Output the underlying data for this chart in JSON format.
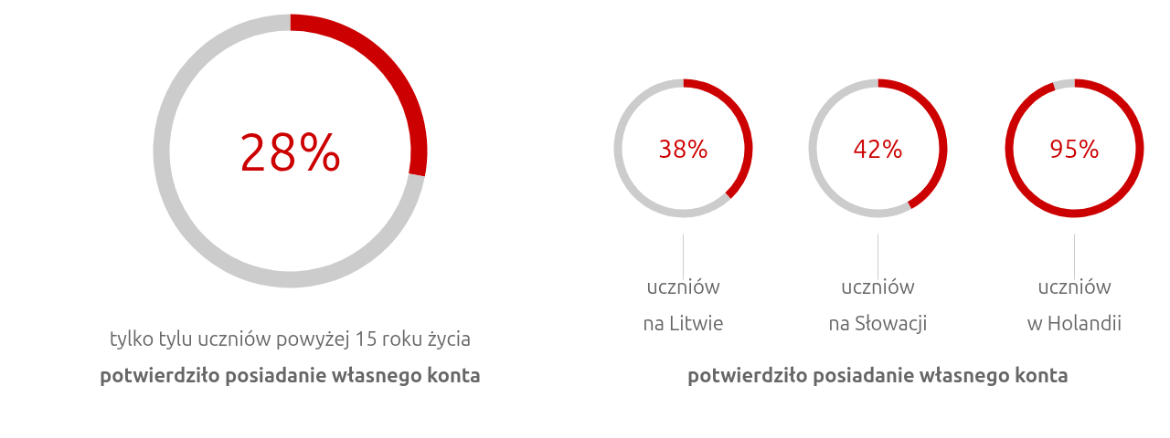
{
  "chart_data": [
    {
      "type": "donut",
      "categories": [
        null,
        null
      ],
      "values": [
        28,
        72
      ],
      "colors": [
        "#cc0000",
        "#cccccc"
      ],
      "annotations": [
        "28%",
        "tylko tylu uczniów powyżej 15 roku życia",
        "potwierdziło posiadanie własnego konta"
      ]
    },
    {
      "type": "donut",
      "categories": [
        null,
        null
      ],
      "values": [
        38,
        62
      ],
      "colors": [
        "#cc0000",
        "#cccccc"
      ],
      "annotations": [
        "38%",
        "uczniów\nna Litwie"
      ]
    },
    {
      "type": "donut",
      "categories": [
        null,
        null
      ],
      "values": [
        42,
        58
      ],
      "colors": [
        "#cc0000",
        "#cccccc"
      ],
      "annotations": [
        "42%",
        "uczniów\nna Słowacji",
        "potwierdziło posiadanie własnego konta"
      ]
    },
    {
      "type": "donut",
      "categories": [
        null,
        null
      ],
      "values": [
        95,
        5
      ],
      "colors": [
        "#cc0000",
        "#cccccc"
      ],
      "annotations": [
        "95%",
        "uczniów\nw Holandii"
      ]
    }
  ]
}
